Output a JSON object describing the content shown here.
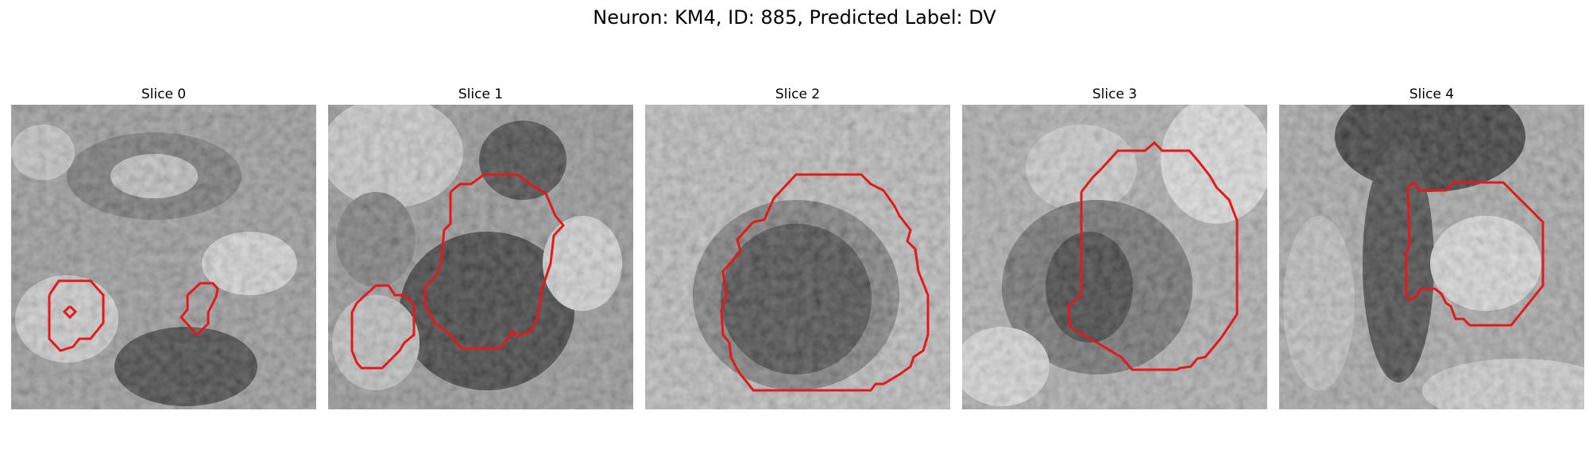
{
  "figure": {
    "title": "Neuron: KM4, ID: 885, Predicted Label: DV"
  },
  "panels": [
    {
      "title": "Slice 0",
      "contour_color": "#e31a1c"
    },
    {
      "title": "Slice 1",
      "contour_color": "#e31a1c"
    },
    {
      "title": "Slice 2",
      "contour_color": "#e31a1c"
    },
    {
      "title": "Slice 3",
      "contour_color": "#e31a1c"
    },
    {
      "title": "Slice 4",
      "contour_color": "#e31a1c"
    }
  ],
  "colormap": "gray"
}
